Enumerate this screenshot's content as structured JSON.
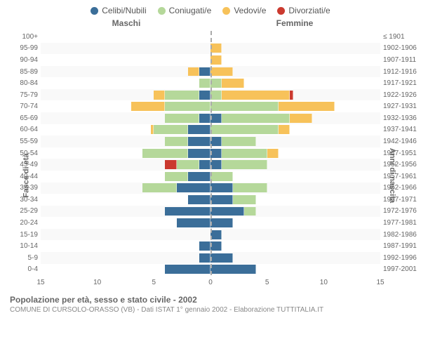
{
  "legend": {
    "items": [
      {
        "label": "Celibi/Nubili",
        "color": "#3b6e99"
      },
      {
        "label": "Coniugati/e",
        "color": "#b5d89a"
      },
      {
        "label": "Vedovi/e",
        "color": "#f7c25a"
      },
      {
        "label": "Divorziati/e",
        "color": "#cb3a2f"
      }
    ]
  },
  "headers": {
    "male": "Maschi",
    "female": "Femmine"
  },
  "axis_left_title": "Fasce di età",
  "axis_right_title": "Anni di nascita",
  "x_ticks": [
    15,
    10,
    5,
    0,
    5,
    10,
    15
  ],
  "x_max": 15,
  "footer": {
    "title": "Popolazione per età, sesso e stato civile - 2002",
    "subtitle": "COMUNE DI CURSOLO-ORASSO (VB) - Dati ISTAT 1° gennaio 2002 - Elaborazione TUTTITALIA.IT"
  },
  "colors": {
    "celibi": "#3b6e99",
    "coniugati": "#b5d89a",
    "vedovi": "#f7c25a",
    "divorziati": "#cb3a2f",
    "center_line": "#aaaaaa",
    "bg": "#ffffff"
  },
  "rows": [
    {
      "age": "100+",
      "birth": "≤ 1901",
      "m": [
        0,
        0,
        0,
        0
      ],
      "f": [
        0,
        0,
        0,
        0
      ]
    },
    {
      "age": "95-99",
      "birth": "1902-1906",
      "m": [
        0,
        0,
        0,
        0
      ],
      "f": [
        0,
        0,
        1,
        0
      ]
    },
    {
      "age": "90-94",
      "birth": "1907-1911",
      "m": [
        0,
        0,
        0,
        0
      ],
      "f": [
        0,
        0,
        1,
        0
      ]
    },
    {
      "age": "85-89",
      "birth": "1912-1916",
      "m": [
        1,
        0,
        1,
        0
      ],
      "f": [
        0,
        0,
        2,
        0
      ]
    },
    {
      "age": "80-84",
      "birth": "1917-1921",
      "m": [
        0,
        1,
        0,
        0
      ],
      "f": [
        0,
        1,
        2,
        0
      ]
    },
    {
      "age": "75-79",
      "birth": "1922-1926",
      "m": [
        1,
        3,
        1,
        0
      ],
      "f": [
        0,
        1,
        6,
        0.3
      ]
    },
    {
      "age": "70-74",
      "birth": "1927-1931",
      "m": [
        0,
        4,
        3,
        0
      ],
      "f": [
        0,
        6,
        5,
        0
      ]
    },
    {
      "age": "65-69",
      "birth": "1932-1936",
      "m": [
        1,
        3,
        0,
        0
      ],
      "f": [
        1,
        6,
        2,
        0
      ]
    },
    {
      "age": "60-64",
      "birth": "1937-1941",
      "m": [
        2,
        3,
        0.3,
        0
      ],
      "f": [
        0,
        6,
        1,
        0
      ]
    },
    {
      "age": "55-59",
      "birth": "1942-1946",
      "m": [
        2,
        2,
        0,
        0
      ],
      "f": [
        1,
        3,
        0,
        0
      ]
    },
    {
      "age": "50-54",
      "birth": "1947-1951",
      "m": [
        2,
        4,
        0,
        0
      ],
      "f": [
        1,
        4,
        1,
        0
      ]
    },
    {
      "age": "45-49",
      "birth": "1952-1956",
      "m": [
        1,
        2,
        0,
        1
      ],
      "f": [
        1,
        4,
        0,
        0
      ]
    },
    {
      "age": "40-44",
      "birth": "1957-1961",
      "m": [
        2,
        2,
        0,
        0
      ],
      "f": [
        0,
        2,
        0,
        0
      ]
    },
    {
      "age": "35-39",
      "birth": "1962-1966",
      "m": [
        3,
        3,
        0,
        0
      ],
      "f": [
        2,
        3,
        0,
        0
      ]
    },
    {
      "age": "30-34",
      "birth": "1967-1971",
      "m": [
        2,
        0,
        0,
        0
      ],
      "f": [
        2,
        2,
        0,
        0
      ]
    },
    {
      "age": "25-29",
      "birth": "1972-1976",
      "m": [
        4,
        0,
        0,
        0
      ],
      "f": [
        3,
        1,
        0,
        0
      ]
    },
    {
      "age": "20-24",
      "birth": "1977-1981",
      "m": [
        3,
        0,
        0,
        0
      ],
      "f": [
        2,
        0,
        0,
        0
      ]
    },
    {
      "age": "15-19",
      "birth": "1982-1986",
      "m": [
        0,
        0,
        0,
        0
      ],
      "f": [
        1,
        0,
        0,
        0
      ]
    },
    {
      "age": "10-14",
      "birth": "1987-1991",
      "m": [
        1,
        0,
        0,
        0
      ],
      "f": [
        1,
        0,
        0,
        0
      ]
    },
    {
      "age": "5-9",
      "birth": "1992-1996",
      "m": [
        1,
        0,
        0,
        0
      ],
      "f": [
        2,
        0,
        0,
        0
      ]
    },
    {
      "age": "0-4",
      "birth": "1997-2001",
      "m": [
        4,
        0,
        0,
        0
      ],
      "f": [
        4,
        0,
        0,
        0
      ]
    }
  ]
}
